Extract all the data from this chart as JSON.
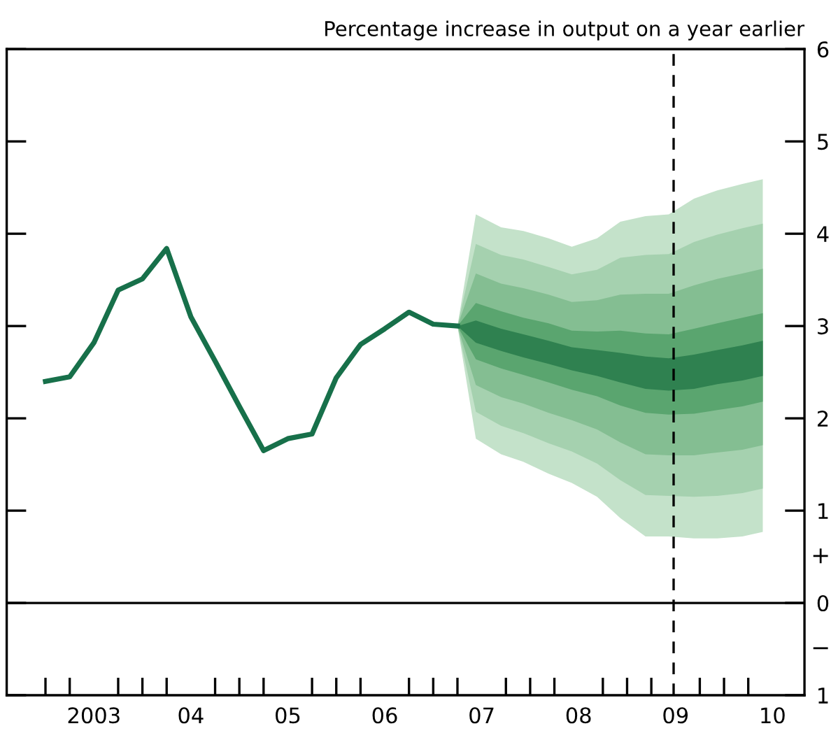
{
  "chart_data": {
    "type": "line",
    "ylabel": "Percentage increase in output on a year earlier",
    "xlim": [
      2002.1,
      2010.33
    ],
    "xticks": [
      {
        "value": 2002.5,
        "label": null
      },
      {
        "value": 2002.75,
        "label": null
      },
      {
        "value": 2003.25,
        "label": null
      },
      {
        "value": 2003.5,
        "label": null
      },
      {
        "value": 2003.75,
        "label": null
      },
      {
        "value": 2004.25,
        "label": null
      },
      {
        "value": 2004.5,
        "label": null
      },
      {
        "value": 2004.75,
        "label": null
      },
      {
        "value": 2005.25,
        "label": null
      },
      {
        "value": 2005.5,
        "label": null
      },
      {
        "value": 2005.75,
        "label": null
      },
      {
        "value": 2006.25,
        "label": null
      },
      {
        "value": 2006.5,
        "label": null
      },
      {
        "value": 2006.75,
        "label": null
      },
      {
        "value": 2007.25,
        "label": null
      },
      {
        "value": 2007.5,
        "label": null
      },
      {
        "value": 2007.75,
        "label": null
      },
      {
        "value": 2008.25,
        "label": null
      },
      {
        "value": 2008.5,
        "label": null
      },
      {
        "value": 2008.75,
        "label": null
      },
      {
        "value": 2009.25,
        "label": null
      },
      {
        "value": 2009.5,
        "label": null
      },
      {
        "value": 2009.75,
        "label": null
      },
      {
        "value": 2003,
        "label": "2003"
      },
      {
        "value": 2004,
        "label": "04"
      },
      {
        "value": 2005,
        "label": "05"
      },
      {
        "value": 2006,
        "label": "06"
      },
      {
        "value": 2007,
        "label": "07"
      },
      {
        "value": 2008,
        "label": "08"
      },
      {
        "value": 2009,
        "label": "09"
      },
      {
        "value": 2010,
        "label": "10"
      }
    ],
    "ylim": [
      -1,
      6
    ],
    "yticks": [
      {
        "value": -1,
        "label": "1"
      },
      0,
      1,
      2,
      3,
      4,
      5,
      6
    ],
    "annotations": [
      "+",
      "−"
    ],
    "grid": false,
    "legend": false,
    "ref_lines": [
      {
        "axis": "y",
        "value": 0,
        "color": "#000000",
        "line_style": "solid"
      },
      {
        "axis": "x",
        "value": 2008.98,
        "color": "#000000",
        "line_style": "dashed"
      }
    ],
    "series": [
      {
        "type": "area",
        "color": "#c4e2ca",
        "x": [
          2006.75,
          2006.94,
          2007.2,
          2007.43,
          2007.69,
          2007.93,
          2008.19,
          2008.43,
          2008.69,
          2008.93,
          2009.19,
          2009.43,
          2009.69,
          2009.9
        ],
        "values": [
          null,
          null,
          null,
          null,
          null,
          null,
          null,
          null,
          null,
          null,
          null,
          null,
          null,
          null
        ],
        "lower": [
          3.0,
          1.78,
          1.61,
          1.53,
          1.4,
          1.3,
          1.15,
          0.92,
          0.72,
          0.72,
          0.7,
          0.7,
          0.72,
          0.77
        ],
        "upper": [
          3.0,
          4.21,
          4.07,
          4.03,
          3.95,
          3.86,
          3.95,
          4.13,
          4.19,
          4.21,
          4.38,
          4.47,
          4.54,
          4.59
        ]
      },
      {
        "type": "area",
        "color": "#a5d1af",
        "x": [
          2006.75,
          2006.94,
          2007.2,
          2007.43,
          2007.69,
          2007.93,
          2008.19,
          2008.43,
          2008.69,
          2008.93,
          2009.19,
          2009.43,
          2009.69,
          2009.9
        ],
        "values": [
          null,
          null,
          null,
          null,
          null,
          null,
          null,
          null,
          null,
          null,
          null,
          null,
          null,
          null
        ],
        "lower": [
          3.0,
          2.07,
          1.92,
          1.84,
          1.73,
          1.64,
          1.51,
          1.33,
          1.17,
          1.16,
          1.15,
          1.16,
          1.19,
          1.24
        ],
        "upper": [
          3.0,
          3.89,
          3.77,
          3.72,
          3.64,
          3.56,
          3.61,
          3.74,
          3.77,
          3.78,
          3.91,
          3.99,
          4.06,
          4.11
        ]
      },
      {
        "type": "area",
        "color": "#84be92",
        "x": [
          2006.75,
          2006.94,
          2007.2,
          2007.43,
          2007.69,
          2007.93,
          2008.19,
          2008.43,
          2008.69,
          2008.93,
          2009.19,
          2009.43,
          2009.69,
          2009.9
        ],
        "values": [
          null,
          null,
          null,
          null,
          null,
          null,
          null,
          null,
          null,
          null,
          null,
          null,
          null,
          null
        ],
        "lower": [
          3.0,
          2.36,
          2.23,
          2.16,
          2.06,
          1.98,
          1.88,
          1.74,
          1.61,
          1.6,
          1.6,
          1.63,
          1.66,
          1.71
        ],
        "upper": [
          3.0,
          3.57,
          3.46,
          3.41,
          3.34,
          3.26,
          3.28,
          3.34,
          3.35,
          3.35,
          3.44,
          3.51,
          3.57,
          3.62
        ]
      },
      {
        "type": "area",
        "color": "#5aa56f",
        "x": [
          2006.75,
          2006.94,
          2007.2,
          2007.43,
          2007.69,
          2007.93,
          2008.19,
          2008.43,
          2008.69,
          2008.93,
          2009.19,
          2009.43,
          2009.69,
          2009.9
        ],
        "values": [
          null,
          null,
          null,
          null,
          null,
          null,
          null,
          null,
          null,
          null,
          null,
          null,
          null,
          null
        ],
        "lower": [
          3.0,
          2.64,
          2.54,
          2.47,
          2.39,
          2.31,
          2.24,
          2.14,
          2.06,
          2.04,
          2.05,
          2.09,
          2.13,
          2.18
        ],
        "upper": [
          3.0,
          3.25,
          3.16,
          3.09,
          3.03,
          2.95,
          2.94,
          2.95,
          2.92,
          2.91,
          2.97,
          3.03,
          3.09,
          3.14
        ]
      },
      {
        "type": "area",
        "color": "#2f8150",
        "x": [
          2006.75,
          2006.94,
          2007.2,
          2007.43,
          2007.69,
          2007.93,
          2008.19,
          2008.43,
          2008.69,
          2008.93,
          2009.19,
          2009.43,
          2009.69,
          2009.9
        ],
        "values": [
          null,
          null,
          null,
          null,
          null,
          null,
          null,
          null,
          null,
          null,
          null,
          null,
          null,
          null
        ],
        "lower": [
          3.0,
          2.82,
          2.73,
          2.66,
          2.59,
          2.52,
          2.46,
          2.39,
          2.32,
          2.3,
          2.32,
          2.37,
          2.41,
          2.46
        ],
        "upper": [
          3.0,
          3.06,
          2.97,
          2.91,
          2.84,
          2.77,
          2.74,
          2.71,
          2.67,
          2.65,
          2.69,
          2.74,
          2.79,
          2.84
        ]
      },
      {
        "color": "#17704a",
        "x": [
          2002.5,
          2002.75,
          2003.0,
          2003.25,
          2003.5,
          2003.75,
          2004.0,
          2004.25,
          2004.5,
          2004.75,
          2005.0,
          2005.25,
          2005.5,
          2005.75,
          2006.0,
          2006.25,
          2006.5,
          2006.75
        ],
        "values": [
          2.4,
          2.45,
          2.82,
          3.39,
          3.51,
          3.84,
          3.1,
          2.62,
          2.13,
          1.65,
          1.78,
          1.83,
          2.44,
          2.8,
          2.97,
          3.15,
          3.02,
          3.0
        ]
      }
    ]
  }
}
